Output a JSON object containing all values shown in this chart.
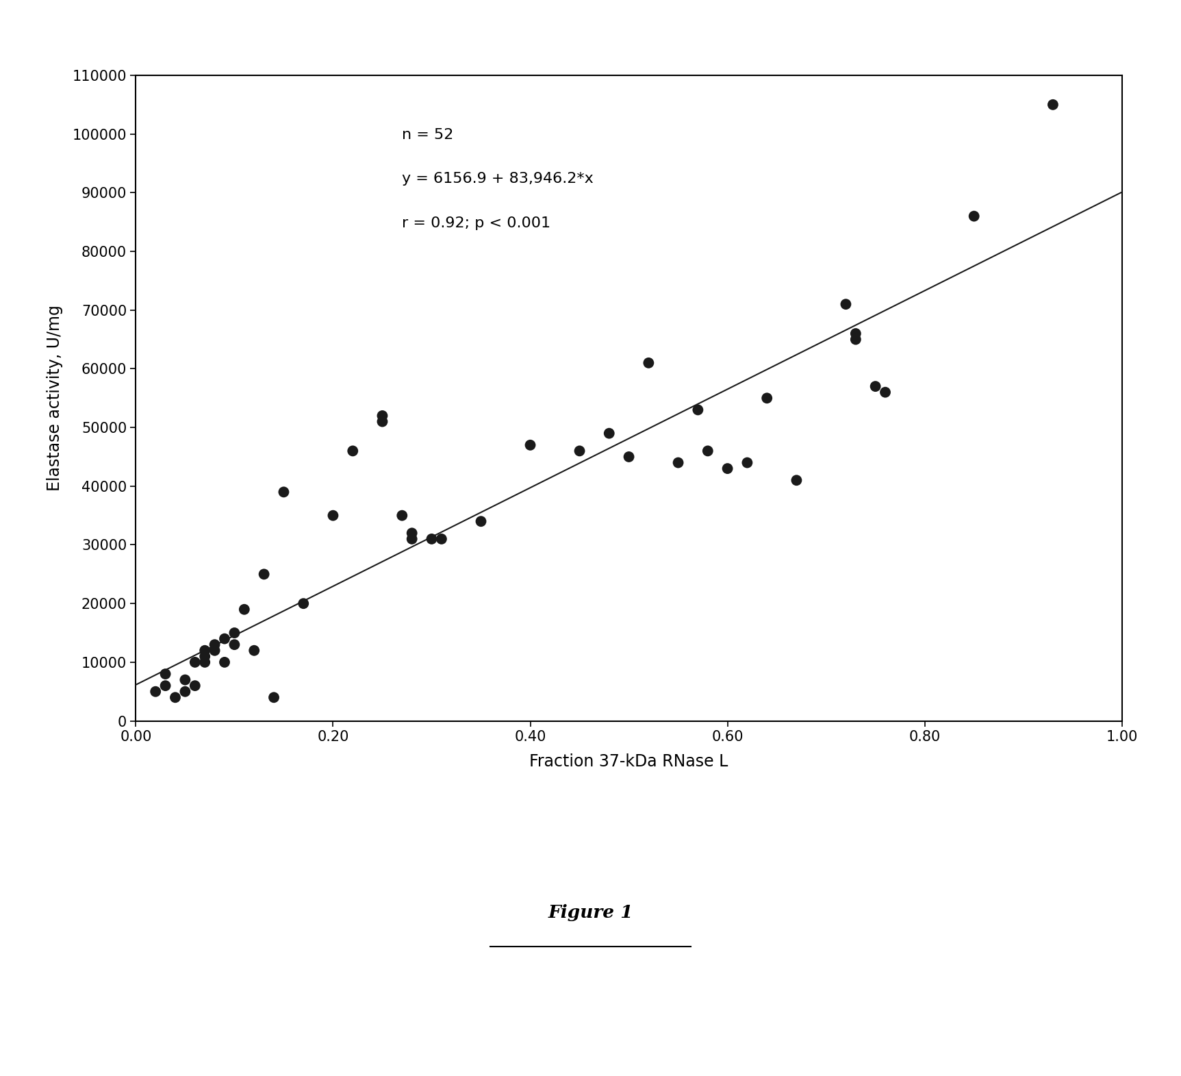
{
  "scatter_x": [
    0.02,
    0.03,
    0.03,
    0.04,
    0.05,
    0.05,
    0.06,
    0.06,
    0.07,
    0.07,
    0.07,
    0.08,
    0.08,
    0.09,
    0.09,
    0.1,
    0.1,
    0.11,
    0.12,
    0.13,
    0.14,
    0.15,
    0.17,
    0.2,
    0.22,
    0.25,
    0.25,
    0.27,
    0.28,
    0.28,
    0.3,
    0.31,
    0.35,
    0.4,
    0.45,
    0.48,
    0.5,
    0.52,
    0.55,
    0.57,
    0.58,
    0.6,
    0.62,
    0.64,
    0.67,
    0.72,
    0.73,
    0.73,
    0.75,
    0.76,
    0.85,
    0.93
  ],
  "scatter_y": [
    5000,
    6000,
    8000,
    4000,
    5000,
    7000,
    6000,
    10000,
    12000,
    10000,
    11000,
    12000,
    13000,
    14000,
    10000,
    13000,
    15000,
    19000,
    12000,
    25000,
    4000,
    39000,
    20000,
    35000,
    46000,
    52000,
    51000,
    35000,
    31000,
    32000,
    31000,
    31000,
    34000,
    47000,
    46000,
    49000,
    45000,
    61000,
    44000,
    53000,
    46000,
    43000,
    44000,
    55000,
    41000,
    71000,
    65000,
    66000,
    57000,
    56000,
    86000,
    105000
  ],
  "line_intercept": 6156.9,
  "line_slope": 83946.2,
  "annotation_line1": "n = 52",
  "annotation_line2": "y = 6156.9 + 83,946.2*x",
  "annotation_line3": "r = 0.92; p < 0.001",
  "xlabel": "Fraction 37-kDa RNase L",
  "ylabel": "Elastase activity, U/mg",
  "xlim": [
    0.0,
    1.0
  ],
  "ylim": [
    0,
    110000
  ],
  "xticks": [
    0.0,
    0.2,
    0.4,
    0.6,
    0.8,
    1.0
  ],
  "yticks": [
    0,
    10000,
    20000,
    30000,
    40000,
    50000,
    60000,
    70000,
    80000,
    90000,
    100000,
    110000
  ],
  "figure_caption": "Figure 1",
  "marker_color": "#1a1a1a",
  "line_color": "#1a1a1a",
  "bg_color": "#ffffff",
  "annotation_fontsize": 16,
  "axis_label_fontsize": 17,
  "tick_fontsize": 15,
  "caption_fontsize": 19
}
